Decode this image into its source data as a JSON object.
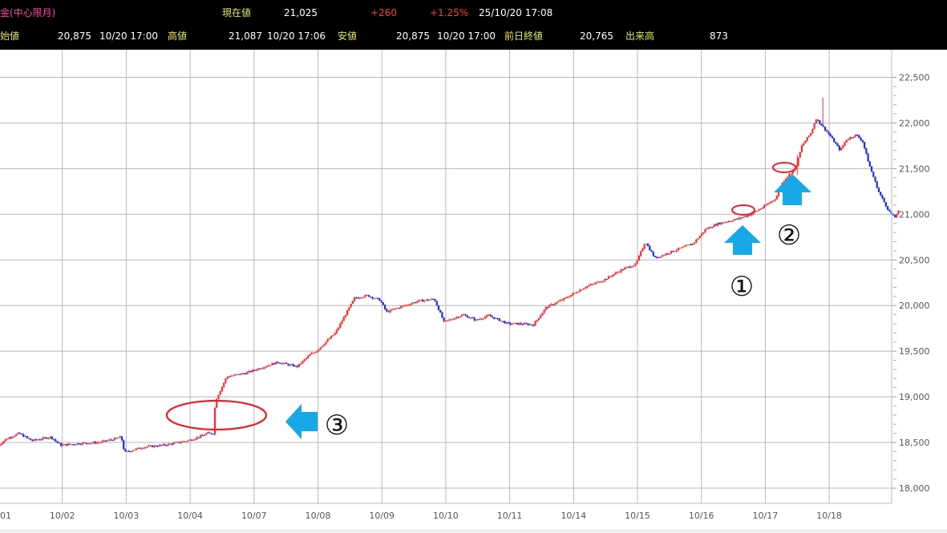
{
  "header": {
    "name": "金(中心限月)",
    "current_label": "現在値",
    "current_value": "21,025",
    "change": "+260",
    "change_pct": "+1.25%",
    "datetime": "25/10/20 17:08",
    "open_label": "始値",
    "open_value": "20,875",
    "open_time": "10/20 17:00",
    "high_label": "高値",
    "high_value": "21,087",
    "high_time": "10/20 17:06",
    "low_label": "安値",
    "low_value": "20,875",
    "low_time": "10/20 17:00",
    "prev_close_label": "前日終値",
    "prev_close_value": "20,765",
    "volume_label": "出来高",
    "volume_value": "873"
  },
  "chart_data": {
    "type": "candlestick",
    "x_tick_labels": [
      "01",
      "10/02",
      "10/03",
      "10/04",
      "10/07",
      "10/08",
      "10/09",
      "10/10",
      "10/11",
      "10/14",
      "10/15",
      "10/16",
      "10/17",
      "10/18"
    ],
    "y_ticks": [
      18000,
      18500,
      19000,
      19500,
      20000,
      20500,
      21000,
      21500,
      22000,
      22500
    ],
    "y_tick_labels": [
      "18,000",
      "18,500",
      "19,000",
      "19,500",
      "20,000",
      "20,500",
      "21,000",
      "21,500",
      "22,000",
      "22,500"
    ],
    "ylim": [
      17980,
      22550
    ],
    "grid": true,
    "up_color": "#ff2a2a",
    "down_color": "#1a2ae6",
    "price_path": [
      [
        0.0,
        18450
      ],
      [
        0.15,
        18540
      ],
      [
        0.35,
        18600
      ],
      [
        0.55,
        18520
      ],
      [
        0.85,
        18560
      ],
      [
        1.0,
        18470
      ],
      [
        1.3,
        18490
      ],
      [
        1.6,
        18500
      ],
      [
        1.8,
        18530
      ],
      [
        1.95,
        18560
      ],
      [
        2.0,
        18390
      ],
      [
        2.3,
        18450
      ],
      [
        2.6,
        18470
      ],
      [
        2.85,
        18500
      ],
      [
        3.0,
        18520
      ],
      [
        3.2,
        18570
      ],
      [
        3.3,
        18600
      ],
      [
        3.4,
        18600
      ],
      [
        3.42,
        18950
      ],
      [
        3.6,
        19220
      ],
      [
        3.9,
        19260
      ],
      [
        4.1,
        19310
      ],
      [
        4.4,
        19380
      ],
      [
        4.7,
        19330
      ],
      [
        4.9,
        19460
      ],
      [
        5.0,
        19500
      ],
      [
        5.3,
        19700
      ],
      [
        5.6,
        20080
      ],
      [
        5.8,
        20110
      ],
      [
        6.0,
        20060
      ],
      [
        6.1,
        19930
      ],
      [
        6.3,
        19980
      ],
      [
        6.6,
        20050
      ],
      [
        6.85,
        20070
      ],
      [
        7.0,
        19820
      ],
      [
        7.3,
        19900
      ],
      [
        7.5,
        19840
      ],
      [
        7.7,
        19890
      ],
      [
        8.0,
        19800
      ],
      [
        8.2,
        19800
      ],
      [
        8.4,
        19790
      ],
      [
        8.6,
        19980
      ],
      [
        8.9,
        20080
      ],
      [
        9.2,
        20200
      ],
      [
        9.5,
        20280
      ],
      [
        9.8,
        20400
      ],
      [
        10.0,
        20450
      ],
      [
        10.15,
        20700
      ],
      [
        10.3,
        20520
      ],
      [
        10.6,
        20600
      ],
      [
        10.9,
        20680
      ],
      [
        11.1,
        20840
      ],
      [
        11.3,
        20900
      ],
      [
        11.6,
        20950
      ],
      [
        11.8,
        21000
      ],
      [
        12.0,
        21080
      ],
      [
        12.2,
        21180
      ],
      [
        12.25,
        21300
      ],
      [
        12.35,
        21400
      ],
      [
        12.5,
        21500
      ],
      [
        12.6,
        21750
      ],
      [
        12.75,
        21900
      ],
      [
        12.82,
        22050
      ],
      [
        13.0,
        21900
      ],
      [
        13.2,
        21700
      ],
      [
        13.3,
        21820
      ],
      [
        13.45,
        21870
      ],
      [
        13.55,
        21800
      ],
      [
        13.65,
        21550
      ],
      [
        13.8,
        21250
      ],
      [
        13.95,
        21050
      ],
      [
        14.05,
        20960
      ],
      [
        14.1,
        21030
      ]
    ],
    "annotations": [
      {
        "label": "①",
        "x": 11.6,
        "price": 21200
      },
      {
        "label": "②",
        "x": 12.6,
        "price": 20840
      },
      {
        "label": "③",
        "x": 5.15,
        "price": 18690
      }
    ]
  }
}
